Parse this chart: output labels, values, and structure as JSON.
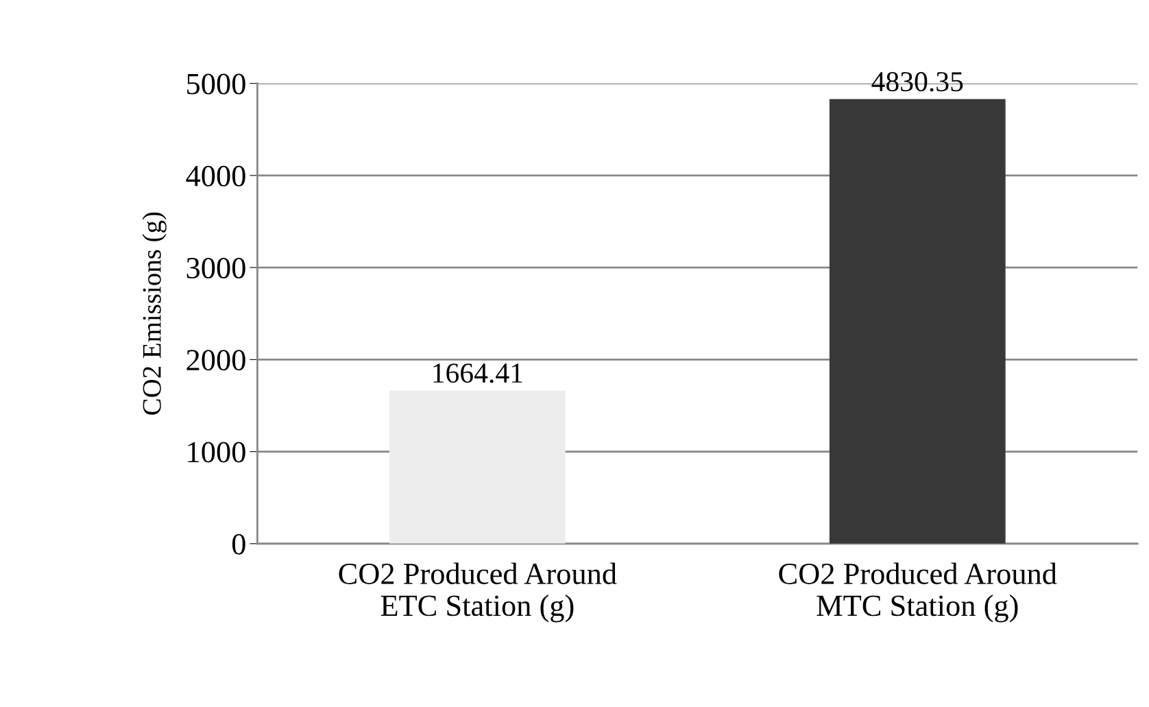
{
  "chart_data": {
    "type": "bar",
    "ylabel": "CO2 Emissions (g)",
    "categories": [
      "CO2 Produced Around\nETC Station (g)",
      "CO2 Produced Around\nMTC Station (g)"
    ],
    "values": [
      1664.41,
      4830.35
    ],
    "colors": [
      "#ededed",
      "#383838"
    ],
    "ylim": [
      0,
      5000
    ],
    "yticks": [
      0,
      1000,
      2000,
      3000,
      4000,
      5000
    ],
    "grid": "y",
    "legend": false,
    "data_labels": true
  }
}
